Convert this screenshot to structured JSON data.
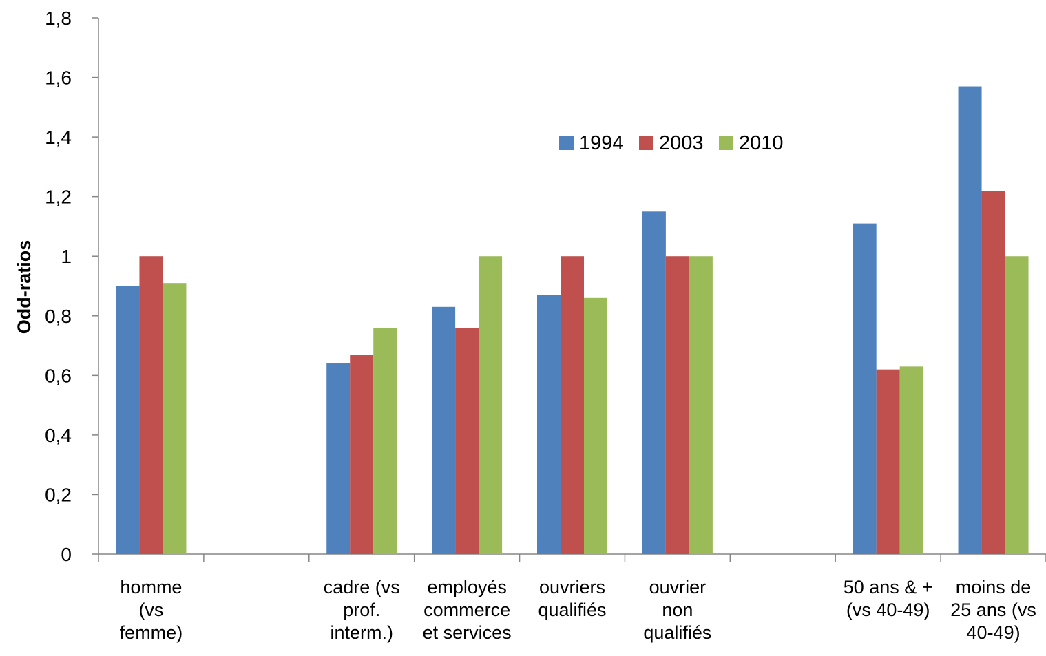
{
  "chart_data": {
    "type": "bar",
    "ylabel": "Odd-ratios",
    "ylim": [
      0,
      1.8
    ],
    "yticks": [
      "0",
      "0,2",
      "0,4",
      "0,6",
      "0,8",
      "1",
      "1,2",
      "1,4",
      "1,6",
      "1,8"
    ],
    "grid": false,
    "legend_position": "top-center",
    "categories": [
      [
        "homme",
        "(vs",
        "femme)"
      ],
      [],
      [
        "cadre (vs",
        "prof.",
        "interm.)"
      ],
      [
        "employés",
        "commerce",
        "et services"
      ],
      [
        "ouvriers",
        "qualifiés"
      ],
      [
        "ouvrier",
        "non",
        "qualifiés"
      ],
      [],
      [
        "50 ans & +",
        "(vs 40-49)"
      ],
      [
        "moins de",
        "25 ans (vs",
        "40-49)"
      ]
    ],
    "series": [
      {
        "name": "1994",
        "color": "#4F81BD",
        "values": [
          0.9,
          null,
          0.64,
          0.83,
          0.87,
          1.15,
          null,
          1.11,
          1.57
        ]
      },
      {
        "name": "2003",
        "color": "#C0504D",
        "values": [
          1.0,
          null,
          0.67,
          0.76,
          1.0,
          1.0,
          null,
          0.62,
          1.22
        ]
      },
      {
        "name": "2010",
        "color": "#9BBB59",
        "values": [
          0.91,
          null,
          0.76,
          1.0,
          0.86,
          1.0,
          null,
          0.63,
          1.0
        ]
      }
    ]
  }
}
